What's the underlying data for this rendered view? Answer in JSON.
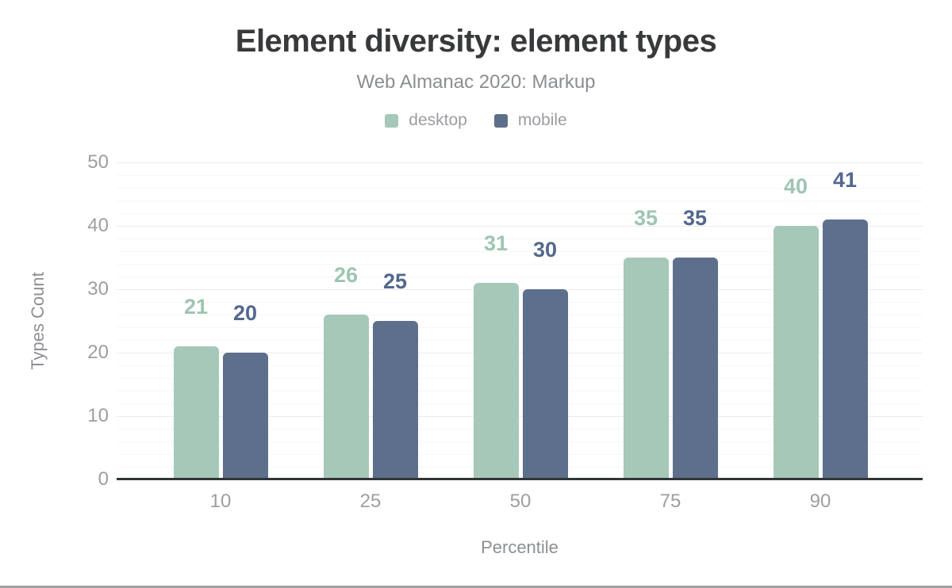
{
  "chart_data": {
    "type": "bar",
    "title": "Element diversity: element types",
    "subtitle": "Web Almanac 2020: Markup",
    "xlabel": "Percentile",
    "ylabel": "Types Count",
    "categories": [
      "10",
      "25",
      "50",
      "75",
      "90"
    ],
    "series": [
      {
        "name": "desktop",
        "values": [
          21,
          26,
          31,
          35,
          40
        ],
        "color": "#a6c8b8",
        "label_color": "#9ec5b2"
      },
      {
        "name": "mobile",
        "values": [
          20,
          25,
          30,
          35,
          41
        ],
        "color": "#5d6f8b",
        "label_color": "#54688d"
      }
    ],
    "ylim": [
      0,
      50
    ],
    "yticks": [
      0,
      10,
      20,
      30,
      40,
      50
    ],
    "grid": {
      "major_step": 10,
      "minor_step": 2,
      "visible": true
    },
    "legend_position": "top",
    "axis_line_color": "#323537"
  }
}
